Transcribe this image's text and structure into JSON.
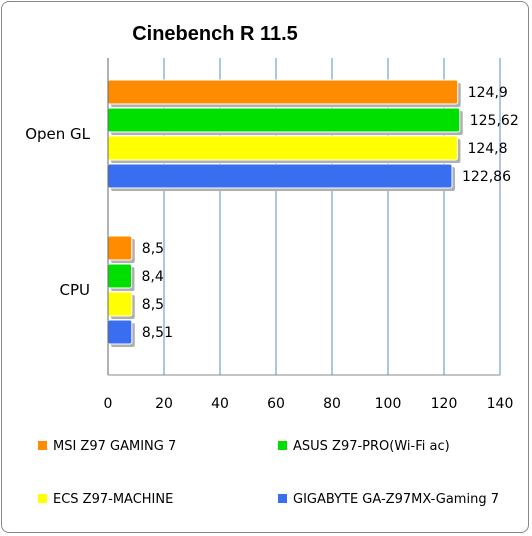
{
  "chart_data": {
    "type": "bar",
    "orientation": "horizontal",
    "title": "Cinebench R 11.5",
    "categories": [
      "Open GL",
      "CPU"
    ],
    "series": [
      {
        "name": "MSI Z97 GAMING 7",
        "color": "#ff8c00",
        "values": [
          124.9,
          8.5
        ],
        "labels": [
          "124,9",
          "8,5"
        ]
      },
      {
        "name": "ASUS Z97-PRO(Wi-Fi ac)",
        "color": "#00e000",
        "values": [
          125.62,
          8.4
        ],
        "labels": [
          "125,62",
          "8,4"
        ]
      },
      {
        "name": "ECS Z97-MACHINE",
        "color": "#ffff00",
        "values": [
          124.8,
          8.5
        ],
        "labels": [
          "124,8",
          "8,5"
        ]
      },
      {
        "name": "GIGABYTE GA-Z97MX-Gaming 7",
        "color": "#3a6ef0",
        "values": [
          122.86,
          8.51
        ],
        "labels": [
          "122,86",
          "8,51"
        ]
      }
    ],
    "xlim": [
      0,
      140
    ],
    "xticks": [
      0,
      20,
      40,
      60,
      80,
      100,
      120,
      140
    ],
    "grid": "vertical",
    "gridColor": "#9db7d7",
    "legend": "bottom"
  }
}
